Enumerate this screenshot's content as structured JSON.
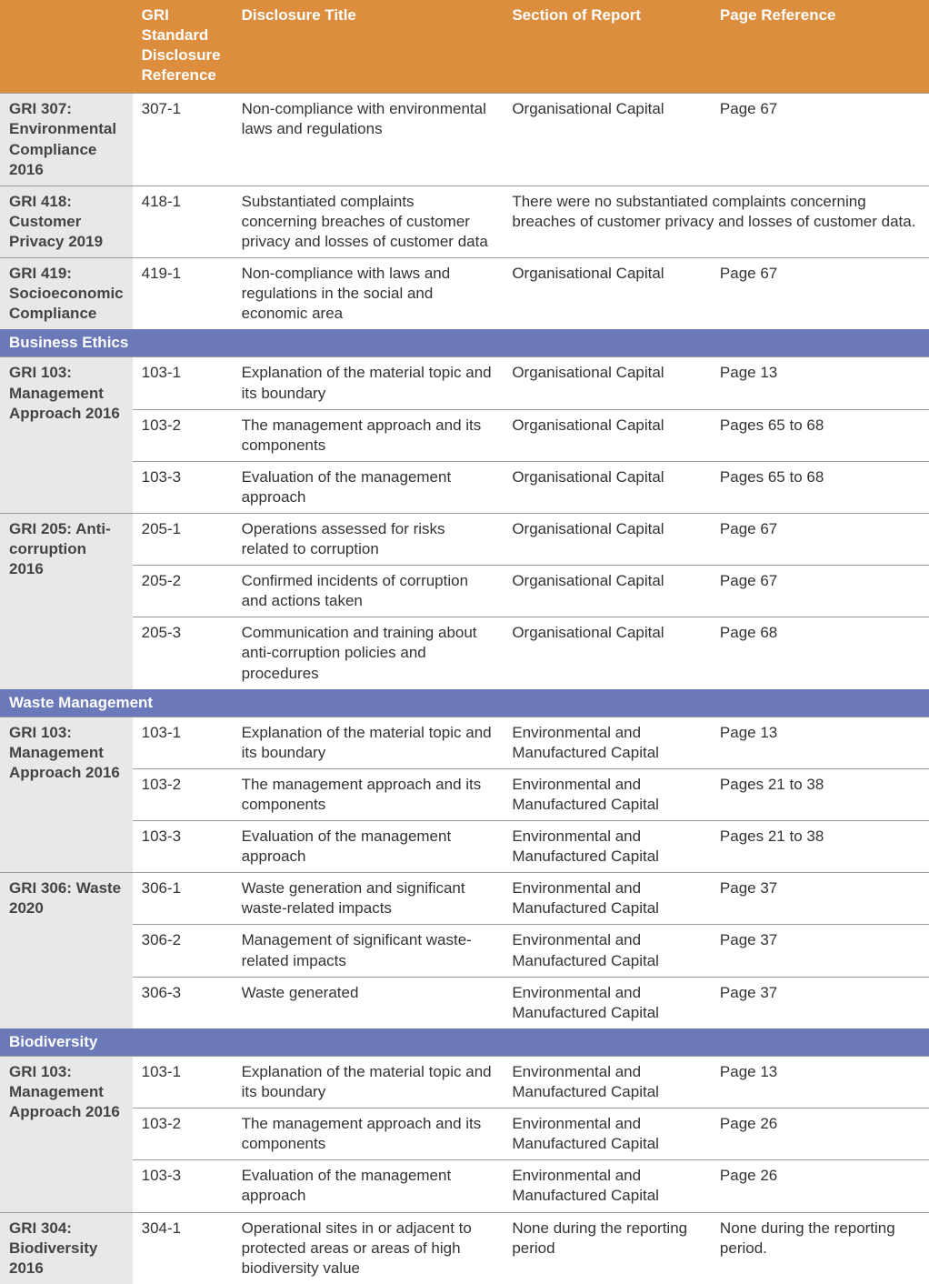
{
  "colors": {
    "header_bg": "#dc8d3e",
    "section_bg": "#6b79b8",
    "std_bg": "#e8e8e8",
    "border": "#9a9a9a",
    "text": "#333333"
  },
  "headers": {
    "std": "",
    "ref": "GRI Standard Disclosure Reference",
    "title": "Disclosure Title",
    "section": "Section of Report",
    "page": "Page Reference"
  },
  "rows": [
    {
      "type": "data",
      "std": "GRI 307: Environmental Compliance 2016",
      "ref": "307-1",
      "title": "Non-compliance with environmental laws and regulations",
      "section": "Organisational Capital",
      "page": "Page 67",
      "rowspan": 1,
      "group_start": true
    },
    {
      "type": "data",
      "std": "GRI 418: Customer Privacy 2019",
      "ref": "418-1",
      "title": "Substantiated complaints concerning breaches of customer privacy and losses of customer data",
      "section_colspan": "There were no substantiated complaints concerning breaches of customer privacy and losses of customer data.",
      "rowspan": 1,
      "group_start": true
    },
    {
      "type": "data",
      "std": "GRI 419: Socioeconomic Compliance",
      "ref": "419-1",
      "title": "Non-compliance with laws and regulations in the social and economic area",
      "section": "Organisational Capital",
      "page": "Page 67",
      "rowspan": 1,
      "group_start": true
    },
    {
      "type": "section",
      "label": "Business Ethics"
    },
    {
      "type": "data",
      "std": "GRI 103: Management Approach 2016",
      "ref": "103-1",
      "title": "Explanation of the material topic and its boundary",
      "section": "Organisational Capital",
      "page": "Page 13",
      "rowspan": 3,
      "group_start": true
    },
    {
      "type": "data",
      "ref": "103-2",
      "title": "The management approach and its components",
      "section": "Organisational Capital",
      "page": "Pages 65 to 68"
    },
    {
      "type": "data",
      "ref": "103-3",
      "title": "Evaluation of the management approach",
      "section": "Organisational Capital",
      "page": "Pages 65 to 68"
    },
    {
      "type": "data",
      "std": "GRI 205: Anti-corruption 2016",
      "ref": "205-1",
      "title": "Operations assessed for risks related to corruption",
      "section": "Organisational Capital",
      "page": "Page 67",
      "rowspan": 3,
      "group_start": true
    },
    {
      "type": "data",
      "ref": "205-2",
      "title": "Confirmed incidents of corruption and actions taken",
      "section": "Organisational Capital",
      "page": "Page 67"
    },
    {
      "type": "data",
      "ref": "205-3",
      "title": "Communication and training about anti-corruption policies and procedures",
      "section": "Organisational Capital",
      "page": "Page 68"
    },
    {
      "type": "section",
      "label": "Waste Management"
    },
    {
      "type": "data",
      "std": "GRI 103: Management Approach 2016",
      "ref": "103-1",
      "title": "Explanation of the material topic and its boundary",
      "section": "Environmental and Manufactured Capital",
      "page": "Page 13",
      "rowspan": 3,
      "group_start": true
    },
    {
      "type": "data",
      "ref": "103-2",
      "title": "The management approach and its components",
      "section": "Environmental and Manufactured Capital",
      "page": "Pages 21 to 38"
    },
    {
      "type": "data",
      "ref": "103-3",
      "title": "Evaluation of the management approach",
      "section": "Environmental and Manufactured Capital",
      "page": "Pages 21 to 38"
    },
    {
      "type": "data",
      "std": "GRI 306: Waste 2020",
      "ref": "306-1",
      "title": "Waste generation and significant waste-related impacts",
      "section": "Environmental and Manufactured Capital",
      "page": "Page 37",
      "rowspan": 3,
      "group_start": true
    },
    {
      "type": "data",
      "ref": "306-2",
      "title": "Management of significant waste-related impacts",
      "section": "Environmental and Manufactured Capital",
      "page": "Page 37"
    },
    {
      "type": "data",
      "ref": "306-3",
      "title": "Waste generated",
      "section": "Environmental and Manufactured Capital",
      "page": "Page 37"
    },
    {
      "type": "section",
      "label": "Biodiversity"
    },
    {
      "type": "data",
      "std": "GRI 103: Management Approach 2016",
      "ref": "103-1",
      "title": "Explanation of the material topic and its boundary",
      "section": "Environmental and Manufactured Capital",
      "page": "Page 13",
      "rowspan": 3,
      "group_start": true
    },
    {
      "type": "data",
      "ref": "103-2",
      "title": "The management approach and its components",
      "section": "Environmental and Manufactured Capital",
      "page": "Page 26"
    },
    {
      "type": "data",
      "ref": "103-3",
      "title": "Evaluation of the management approach",
      "section": "Environmental and Manufactured Capital",
      "page": "Page 26"
    },
    {
      "type": "data",
      "std": "GRI 304: Biodiversity 2016",
      "ref": "304-1",
      "title": "Operational sites in or adjacent to protected areas or areas of high biodiversity value",
      "section": "None during the reporting period",
      "page": "None during the reporting period.",
      "rowspan": 1,
      "group_start": true
    }
  ]
}
